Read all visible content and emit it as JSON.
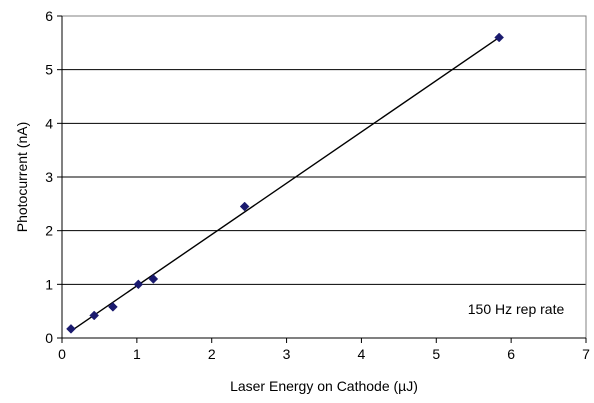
{
  "chart_data": {
    "type": "scatter",
    "title": "",
    "xlabel": "Laser Energy on Cathode (µJ)",
    "ylabel": "Photocurrent (nA)",
    "xlim": [
      0,
      7
    ],
    "ylim": [
      0,
      6
    ],
    "x_ticks": [
      "0",
      "1",
      "2",
      "3",
      "4",
      "5",
      "6",
      "7"
    ],
    "y_ticks": [
      "0",
      "1",
      "2",
      "3",
      "4",
      "5",
      "6"
    ],
    "grid": "horizontal major gridlines",
    "series": [
      {
        "marker": "diamond",
        "color": "#1a1a6e",
        "points": [
          {
            "x": 0.12,
            "y": 0.17
          },
          {
            "x": 0.43,
            "y": 0.42
          },
          {
            "x": 0.68,
            "y": 0.58
          },
          {
            "x": 1.02,
            "y": 1.0
          },
          {
            "x": 1.22,
            "y": 1.1
          },
          {
            "x": 2.44,
            "y": 2.45
          },
          {
            "x": 5.84,
            "y": 5.6
          }
        ]
      }
    ],
    "trendline": {
      "type": "linear",
      "color": "#000000",
      "from": {
        "x": 0.12,
        "y": 0.13
      },
      "to": {
        "x": 5.84,
        "y": 5.6
      }
    },
    "annotations": [
      {
        "text": "150 Hz rep rate"
      }
    ]
  }
}
